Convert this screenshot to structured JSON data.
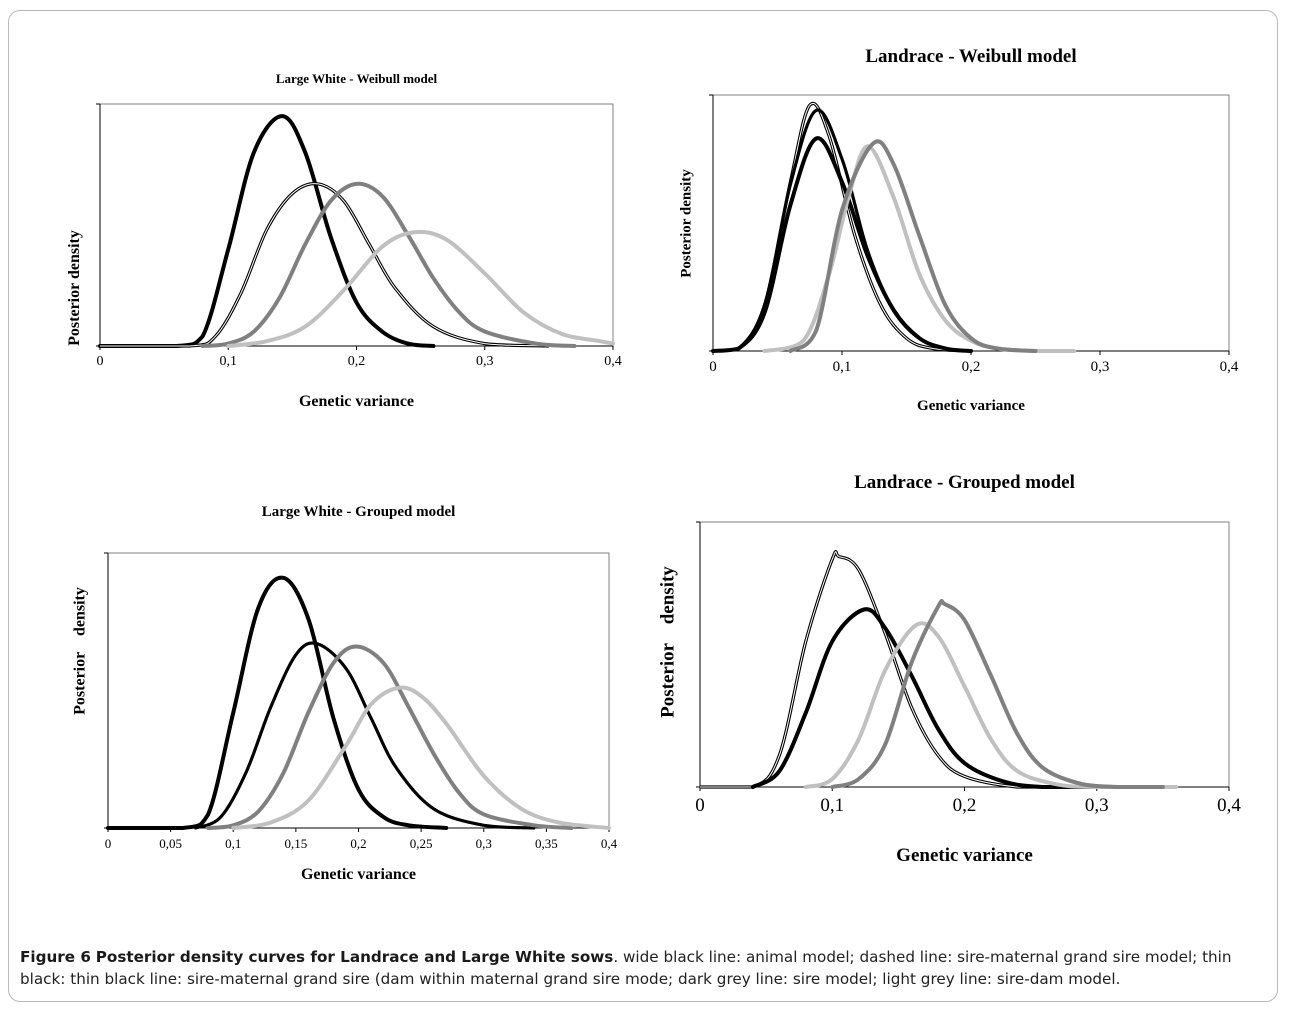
{
  "caption": {
    "label": "Figure 6",
    "title": "Posterior density curves for Landrace and Large White sows",
    "text": ". wide black line: animal model; dashed line: sire-maternal grand sire model; thin black: thin black line: sire-maternal grand sire (dam within maternal grand sire mode; dark grey line: sire model; light grey line: sire-dam model."
  },
  "colors": {
    "black": "#000000",
    "dark_grey": "#808080",
    "light_grey": "#c0c0c0",
    "axis": "#808080"
  },
  "chart_data": [
    {
      "id": "lw-weibull",
      "type": "line",
      "title": "Large White - Weibull model",
      "xlabel": "Genetic variance",
      "ylabel": "Posterior density",
      "xlim": [
        0,
        0.4
      ],
      "xticks": [
        0,
        0.1,
        0.2,
        0.3,
        0.4
      ],
      "xtick_labels": [
        "0",
        "0,1",
        "0,2",
        "0,3",
        "0,4"
      ],
      "ylim": [
        0,
        1.0
      ],
      "grid": false,
      "series": [
        {
          "x": [
            0.0,
            0.06,
            0.08,
            0.1,
            0.12,
            0.142,
            0.16,
            0.18,
            0.2,
            0.22,
            0.24,
            0.26
          ],
          "y": [
            0.0,
            0.0,
            0.04,
            0.4,
            0.8,
            0.95,
            0.8,
            0.45,
            0.18,
            0.06,
            0.01,
            0.0
          ],
          "color": "black",
          "style": "wide"
        },
        {
          "x": [
            0.0,
            0.07,
            0.09,
            0.11,
            0.13,
            0.15,
            0.17,
            0.19,
            0.21,
            0.23,
            0.26,
            0.3,
            0.35
          ],
          "y": [
            0.0,
            0.0,
            0.04,
            0.22,
            0.48,
            0.63,
            0.67,
            0.6,
            0.42,
            0.24,
            0.08,
            0.01,
            0.0
          ],
          "color": "black",
          "style": "thin"
        },
        {
          "x": [
            0.08,
            0.1,
            0.12,
            0.14,
            0.16,
            0.18,
            0.2,
            0.22,
            0.24,
            0.26,
            0.28,
            0.3,
            0.34,
            0.37
          ],
          "y": [
            0.0,
            0.01,
            0.06,
            0.2,
            0.42,
            0.6,
            0.67,
            0.62,
            0.46,
            0.28,
            0.14,
            0.06,
            0.01,
            0.0
          ],
          "color": "dark_grey",
          "style": "wide"
        },
        {
          "x": [
            0.1,
            0.13,
            0.16,
            0.19,
            0.22,
            0.245,
            0.27,
            0.3,
            0.33,
            0.36,
            0.39,
            0.4
          ],
          "y": [
            0.0,
            0.02,
            0.08,
            0.23,
            0.41,
            0.47,
            0.44,
            0.3,
            0.14,
            0.05,
            0.02,
            0.01
          ],
          "color": "light_grey",
          "style": "wide"
        }
      ]
    },
    {
      "id": "landrace-weibull",
      "type": "line",
      "title": "Landrace - Weibull model",
      "xlabel": "Genetic variance",
      "ylabel": "Posterior density",
      "xlim": [
        0,
        0.4
      ],
      "xticks": [
        0,
        0.1,
        0.2,
        0.3,
        0.4
      ],
      "xtick_labels": [
        "0",
        "0,1",
        "0,2",
        "0,3",
        "0,4"
      ],
      "ylim": [
        0,
        1.0
      ],
      "grid": false,
      "series": [
        {
          "x": [
            0.0,
            0.02,
            0.04,
            0.06,
            0.075,
            0.09,
            0.11,
            0.13,
            0.15,
            0.17,
            0.2
          ],
          "y": [
            0.0,
            0.01,
            0.18,
            0.66,
            0.96,
            0.84,
            0.45,
            0.18,
            0.05,
            0.01,
            0.0
          ],
          "color": "black",
          "style": "thin"
        },
        {
          "x": [
            0.0,
            0.02,
            0.04,
            0.06,
            0.08,
            0.1,
            0.12,
            0.14,
            0.16,
            0.18,
            0.2
          ],
          "y": [
            0.0,
            0.01,
            0.18,
            0.65,
            0.94,
            0.75,
            0.39,
            0.16,
            0.05,
            0.01,
            0.0
          ],
          "color": "black",
          "style": "dashed"
        },
        {
          "x": [
            0.0,
            0.02,
            0.04,
            0.06,
            0.08,
            0.1,
            0.12,
            0.14,
            0.16,
            0.18,
            0.2
          ],
          "y": [
            0.0,
            0.01,
            0.15,
            0.57,
            0.83,
            0.66,
            0.37,
            0.16,
            0.05,
            0.01,
            0.0
          ],
          "color": "black",
          "style": "wide"
        },
        {
          "x": [
            0.04,
            0.07,
            0.09,
            0.105,
            0.12,
            0.14,
            0.16,
            0.18,
            0.2,
            0.22,
            0.25,
            0.28
          ],
          "y": [
            0.0,
            0.04,
            0.3,
            0.6,
            0.8,
            0.6,
            0.3,
            0.12,
            0.04,
            0.01,
            0.0,
            0.0
          ],
          "color": "light_grey",
          "style": "wide"
        },
        {
          "x": [
            0.06,
            0.08,
            0.1,
            0.124,
            0.14,
            0.16,
            0.18,
            0.2,
            0.22,
            0.25
          ],
          "y": [
            0.0,
            0.08,
            0.55,
            0.81,
            0.73,
            0.45,
            0.18,
            0.05,
            0.01,
            0.0
          ],
          "color": "dark_grey",
          "style": "wide"
        }
      ]
    },
    {
      "id": "lw-grouped",
      "type": "line",
      "title": "Large White - Grouped model",
      "xlabel": "Genetic variance",
      "ylabel": "Posterior    density",
      "xlim": [
        0,
        0.4
      ],
      "xticks": [
        0,
        0.05,
        0.1,
        0.15,
        0.2,
        0.25,
        0.3,
        0.35,
        0.4
      ],
      "xtick_labels": [
        "0",
        "0,05",
        "0,1",
        "0,15",
        "0,2",
        "0,25",
        "0,3",
        "0,35",
        "0,4"
      ],
      "ylim": [
        0,
        1.0
      ],
      "grid": false,
      "series": [
        {
          "x": [
            0.0,
            0.06,
            0.08,
            0.1,
            0.12,
            0.14,
            0.16,
            0.18,
            0.2,
            0.22,
            0.24,
            0.27
          ],
          "y": [
            0.0,
            0.0,
            0.05,
            0.42,
            0.8,
            0.91,
            0.76,
            0.4,
            0.14,
            0.04,
            0.01,
            0.0
          ],
          "color": "black",
          "style": "wide"
        },
        {
          "x": [
            0.07,
            0.09,
            0.11,
            0.13,
            0.15,
            0.167,
            0.19,
            0.21,
            0.23,
            0.26,
            0.3,
            0.34
          ],
          "y": [
            0.0,
            0.04,
            0.2,
            0.44,
            0.63,
            0.67,
            0.58,
            0.4,
            0.22,
            0.07,
            0.01,
            0.0
          ],
          "color": "black",
          "style": "dashed"
        },
        {
          "x": [
            0.08,
            0.1,
            0.12,
            0.14,
            0.16,
            0.18,
            0.198,
            0.22,
            0.24,
            0.26,
            0.28,
            0.3,
            0.34,
            0.37
          ],
          "y": [
            0.0,
            0.01,
            0.06,
            0.2,
            0.42,
            0.6,
            0.66,
            0.6,
            0.44,
            0.27,
            0.13,
            0.05,
            0.01,
            0.0
          ],
          "color": "dark_grey",
          "style": "wide"
        },
        {
          "x": [
            0.1,
            0.13,
            0.16,
            0.19,
            0.21,
            0.232,
            0.25,
            0.27,
            0.3,
            0.33,
            0.36,
            0.4
          ],
          "y": [
            0.0,
            0.02,
            0.1,
            0.3,
            0.45,
            0.51,
            0.48,
            0.38,
            0.19,
            0.07,
            0.02,
            0.0
          ],
          "color": "light_grey",
          "style": "wide"
        }
      ]
    },
    {
      "id": "landrace-grouped",
      "type": "line",
      "title": "Landrace - Grouped model",
      "xlabel": "Genetic variance",
      "ylabel": "Posterior    density",
      "xlim": [
        0,
        0.4
      ],
      "xticks": [
        0,
        0.1,
        0.2,
        0.3,
        0.4
      ],
      "xtick_labels": [
        "0",
        "0,1",
        "0,2",
        "0,3",
        "0,4"
      ],
      "ylim": [
        0,
        1.0
      ],
      "grid": false,
      "series": [
        {
          "x": [
            0.0,
            0.04,
            0.06,
            0.08,
            0.1,
            0.105,
            0.12,
            0.14,
            0.16,
            0.18,
            0.2,
            0.24,
            0.28
          ],
          "y": [
            0.0,
            0.0,
            0.12,
            0.55,
            0.86,
            0.87,
            0.82,
            0.58,
            0.3,
            0.12,
            0.04,
            0.0,
            0.0
          ],
          "color": "black",
          "style": "thin"
        },
        {
          "x": [
            0.04,
            0.06,
            0.08,
            0.1,
            0.124,
            0.14,
            0.16,
            0.18,
            0.2,
            0.23,
            0.26,
            0.3
          ],
          "y": [
            0.0,
            0.06,
            0.28,
            0.55,
            0.67,
            0.6,
            0.42,
            0.22,
            0.09,
            0.02,
            0.0,
            0.0
          ],
          "color": "black",
          "style": "wide"
        },
        {
          "x": [
            0.08,
            0.1,
            0.12,
            0.14,
            0.163,
            0.18,
            0.2,
            0.22,
            0.24,
            0.27,
            0.3,
            0.36
          ],
          "y": [
            0.0,
            0.03,
            0.18,
            0.44,
            0.61,
            0.57,
            0.38,
            0.18,
            0.06,
            0.01,
            0.0,
            0.0
          ],
          "color": "light_grey",
          "style": "wide"
        },
        {
          "x": [
            0.1,
            0.12,
            0.14,
            0.16,
            0.18,
            0.185,
            0.2,
            0.22,
            0.24,
            0.26,
            0.29,
            0.32,
            0.35
          ],
          "y": [
            0.0,
            0.03,
            0.16,
            0.47,
            0.68,
            0.69,
            0.63,
            0.42,
            0.2,
            0.07,
            0.01,
            0.0,
            0.0
          ],
          "color": "dark_grey",
          "style": "wide"
        }
      ]
    }
  ]
}
